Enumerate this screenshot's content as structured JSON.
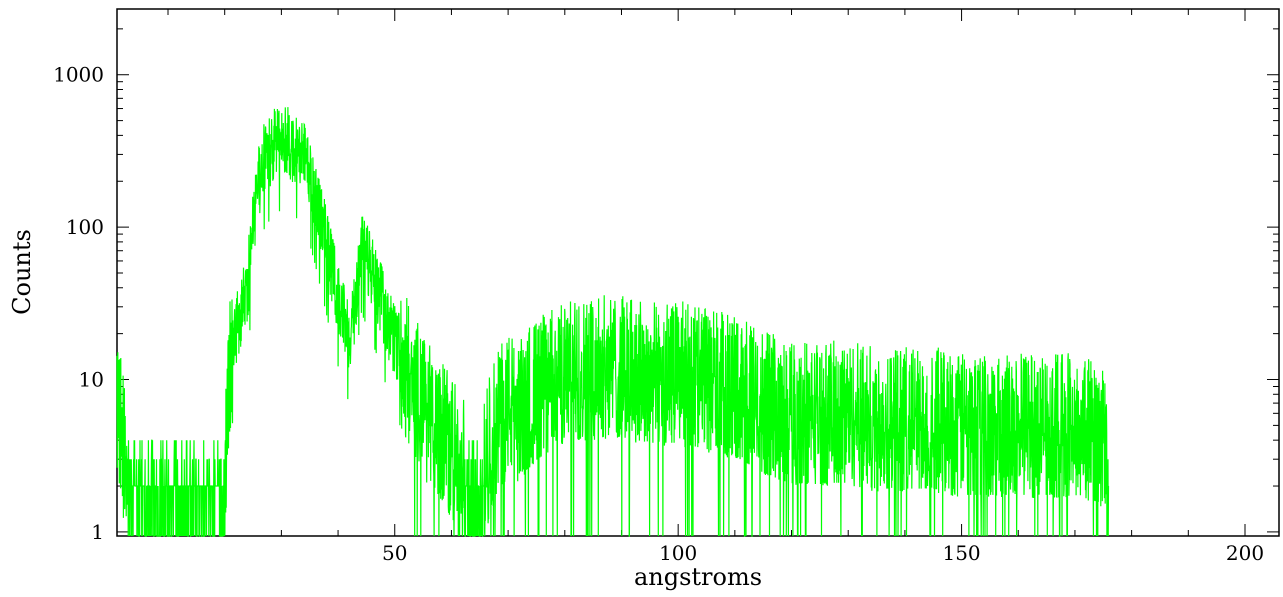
{
  "chart_data": {
    "type": "line",
    "title": "",
    "xlabel": "angstroms",
    "ylabel": "Counts",
    "xlim": [
      1,
      206
    ],
    "ylim": [
      0.94,
      2700
    ],
    "yscale": "log",
    "grid": false,
    "x_ticks": [
      50,
      100,
      150,
      200
    ],
    "x_tick_labels": [
      "50",
      "100",
      "150",
      "200"
    ],
    "y_ticks": [
      1,
      10,
      100,
      1000
    ],
    "y_tick_labels": [
      "1",
      "10",
      "100",
      "1000"
    ],
    "series": [
      {
        "color": "#00ff00",
        "x": [
          1,
          2,
          3,
          5,
          8,
          11,
          14,
          17,
          19,
          20,
          20.5,
          21,
          22,
          23,
          24,
          25,
          26,
          27,
          28,
          29,
          30,
          31,
          32,
          33,
          34,
          35,
          36,
          37,
          38,
          39,
          40,
          41,
          42,
          43,
          44,
          45,
          46,
          47,
          48,
          49,
          50,
          52,
          54,
          56,
          58,
          60,
          62,
          63,
          65,
          66,
          68,
          70,
          72,
          74,
          76,
          78,
          80,
          85,
          90,
          95,
          100,
          105,
          110,
          115,
          120,
          125,
          130,
          135,
          140,
          145,
          150,
          155,
          160,
          165,
          170,
          174,
          175,
          175.5,
          176
        ],
        "y": [
          8,
          4,
          2,
          2,
          2,
          2,
          2,
          2,
          2,
          2,
          8,
          12,
          20,
          30,
          40,
          100,
          200,
          280,
          320,
          350,
          370,
          360,
          340,
          320,
          280,
          220,
          160,
          110,
          75,
          50,
          35,
          25,
          20,
          28,
          80,
          65,
          50,
          40,
          30,
          22,
          18,
          12,
          8,
          6,
          5,
          3.5,
          3,
          1,
          1,
          3,
          5,
          7,
          6,
          8,
          9,
          10,
          11,
          12,
          12,
          11,
          11,
          10,
          9,
          7,
          6,
          6,
          6,
          5.5,
          5.5,
          5.5,
          5,
          5,
          5,
          5,
          5,
          4.5,
          4,
          3,
          1
        ]
      }
    ]
  }
}
